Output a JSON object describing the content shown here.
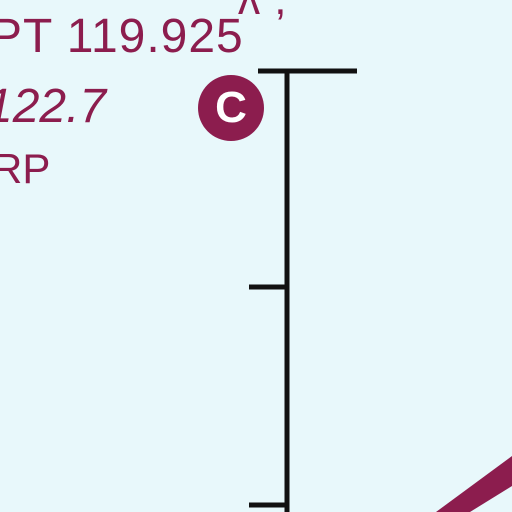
{
  "chart_labels": {
    "top_partial_text": "ʌ ,",
    "ident_frequency": "PT 119.925",
    "frequency": "122.7",
    "frequency_badge": "C",
    "lower_partial_text": "RP"
  },
  "colors": {
    "background": "#e8f8fb",
    "text": "#8c1d4e",
    "scale_line": "#111111",
    "route_line": "#8c1d4e"
  }
}
